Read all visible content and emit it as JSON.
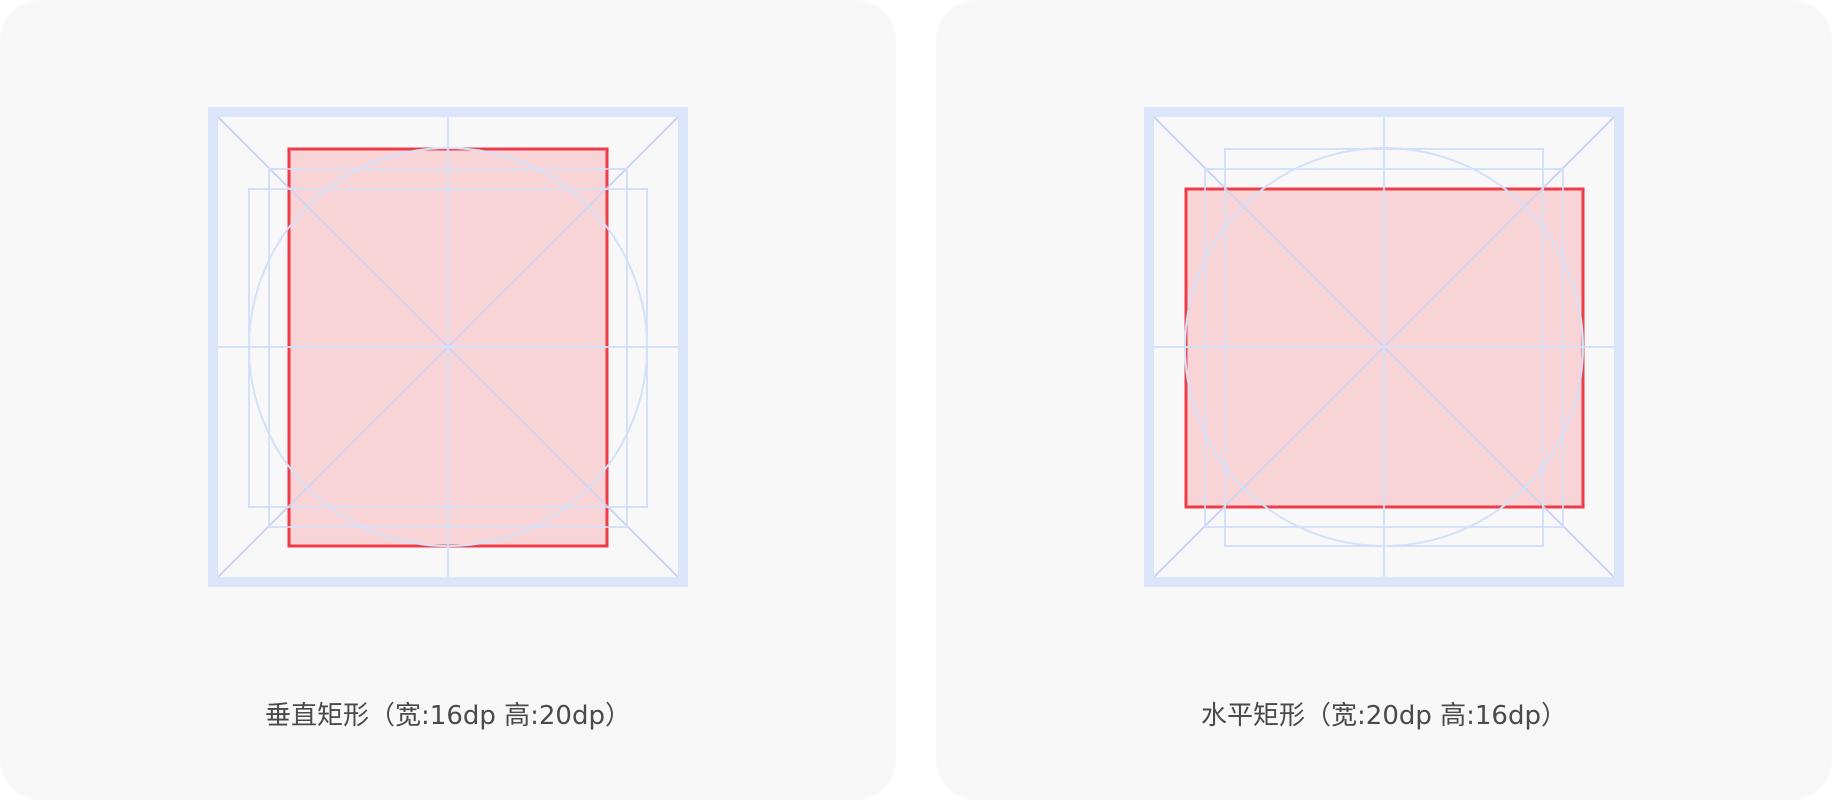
{
  "colors": {
    "card_background": "#f8f8f9",
    "keyline_frame": "#dbe6fb",
    "keyline_guides": "#d4e1fa",
    "shape_stroke": "#ef3c46",
    "shape_fill": "#f8d4d7",
    "caption_text": "#4a4a4a"
  },
  "cards": [
    {
      "id": "vertical",
      "caption": "垂直矩形（宽:16dp 高:20dp）",
      "orientation": "vertical",
      "shape_width_dp": 16,
      "shape_height_dp": 20
    },
    {
      "id": "horizontal",
      "caption": "水平矩形（宽:20dp 高:16dp）",
      "orientation": "horizontal",
      "shape_width_dp": 20,
      "shape_height_dp": 16
    }
  ]
}
